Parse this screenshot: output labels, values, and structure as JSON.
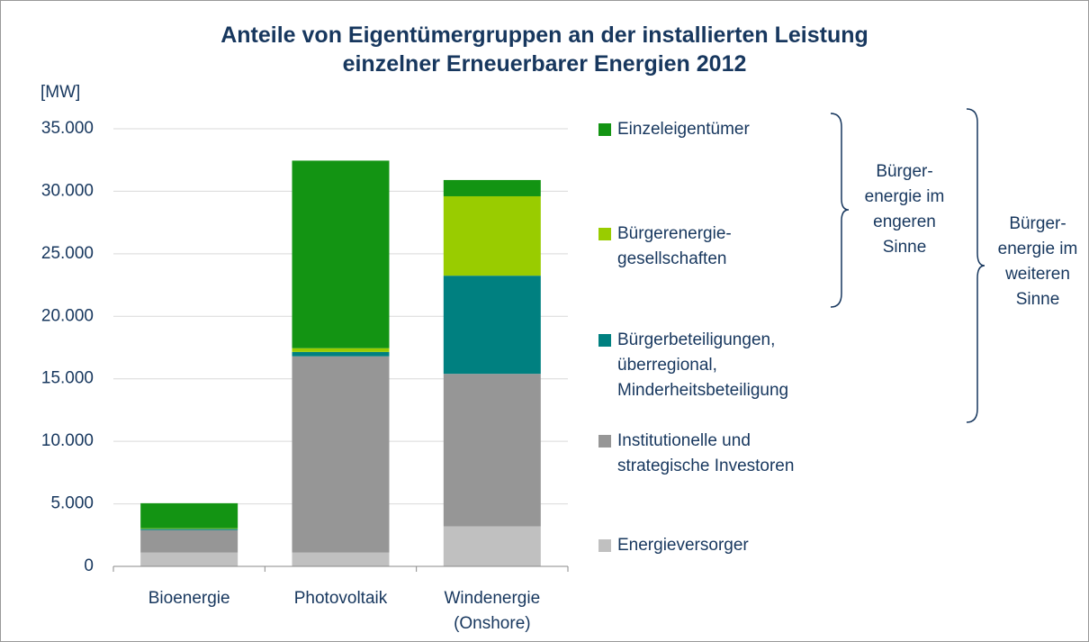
{
  "chart_data": {
    "type": "stacked_bar",
    "title": "Anteile von Eigentümergruppen an der installierten Leistung\neinzelner Erneuerbarer Energien 2012",
    "y_label": "[MW]",
    "categories": [
      "Bioenergie",
      "Photovoltaik",
      "Windenergie\n(Onshore)"
    ],
    "series": [
      {
        "name": "Energieversorger",
        "color": "#c0c0c0",
        "values": [
          1100,
          1100,
          3200
        ]
      },
      {
        "name": "Institutionelle und\nstrategische Investoren",
        "color": "#969696",
        "values": [
          1800,
          15700,
          12200
        ]
      },
      {
        "name": "Bürgerbeteiligungen,\nüberregional,\nMinderheitsbeteiligung",
        "color": "#008080",
        "values": [
          100,
          350,
          7850
        ]
      },
      {
        "name": "Bürgerenergie-\ngesellschaften",
        "color": "#99cc00",
        "values": [
          50,
          300,
          6350
        ]
      },
      {
        "name": "Einzeleigentümer",
        "color": "#139413",
        "values": [
          2000,
          15000,
          1300
        ]
      }
    ],
    "ylim": [
      0,
      35000
    ],
    "yticks": [
      0,
      {
        "value": 5000,
        "label": "5.000"
      },
      {
        "value": 10000,
        "label": "10.000"
      },
      {
        "value": 15000,
        "label": "15.000"
      },
      {
        "value": 20000,
        "label": "20.000"
      },
      {
        "value": 25000,
        "label": "25.000"
      },
      {
        "value": 30000,
        "label": "30.000"
      },
      {
        "value": 35000,
        "label": "35.000"
      }
    ],
    "grid": true,
    "annotations": [
      "Bürger-\nenergie im\nengeren\nSinne",
      "Bürger-\nenergie im\nweiteren\nSinne"
    ]
  }
}
